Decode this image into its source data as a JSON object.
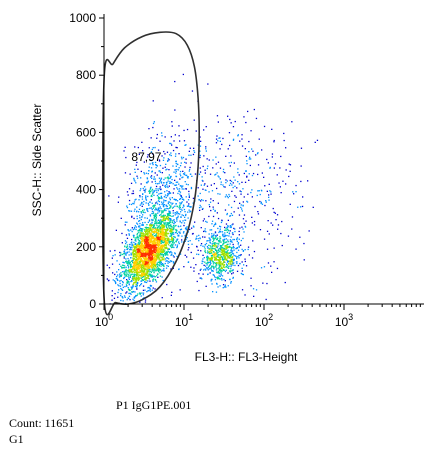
{
  "chart_data": {
    "type": "scatter",
    "title": "",
    "xlabel": "FL3-H:: FL3-Height",
    "ylabel": "SSC-H:: Side Scatter",
    "x_scale": "log",
    "xlim": [
      1,
      10000
    ],
    "x_ticks": [
      {
        "value": 1,
        "base": "10",
        "exp": "0"
      },
      {
        "value": 10,
        "base": "10",
        "exp": "1"
      },
      {
        "value": 100,
        "base": "10",
        "exp": "2"
      },
      {
        "value": 1000,
        "base": "10",
        "exp": "3"
      }
    ],
    "ylim": [
      0,
      1000
    ],
    "y_ticks": [
      0,
      200,
      400,
      600,
      800,
      1000
    ],
    "grid": false,
    "populations": [
      {
        "center_x": 3.5,
        "center_y": 180,
        "spread_logx": 0.17,
        "spread_y": 55,
        "tilt": 220,
        "share": 0.55
      },
      {
        "center_x": 5.0,
        "center_y": 360,
        "spread_logx": 0.22,
        "spread_y": 110,
        "tilt": 120,
        "share": 0.17
      },
      {
        "center_x": 28,
        "center_y": 170,
        "spread_logx": 0.12,
        "spread_y": 45,
        "tilt": 0,
        "share": 0.16
      },
      {
        "center_x": 35,
        "center_y": 380,
        "spread_logx": 0.45,
        "spread_y": 140,
        "tilt": 0,
        "share": 0.12
      }
    ],
    "gate": {
      "name": "G1",
      "percent_label": "87,97",
      "label_at": [
        2.2,
        500
      ],
      "outline": [
        [
          1.0,
          780
        ],
        [
          1.3,
          840
        ],
        [
          1.8,
          895
        ],
        [
          3.0,
          935
        ],
        [
          5.0,
          950
        ],
        [
          8.0,
          945
        ],
        [
          11.0,
          905
        ],
        [
          13.5,
          830
        ],
        [
          15.0,
          720
        ],
        [
          15.5,
          600
        ],
        [
          15.0,
          480
        ],
        [
          13.5,
          360
        ],
        [
          11.0,
          250
        ],
        [
          8.0,
          150
        ],
        [
          5.0,
          60
        ],
        [
          3.0,
          15
        ],
        [
          2.0,
          0
        ],
        [
          1.4,
          5
        ],
        [
          1.0,
          25
        ]
      ]
    },
    "color_scale": [
      "#0000d0",
      "#0090ff",
      "#00d0a0",
      "#a0e000",
      "#ffd000",
      "#ff3000"
    ]
  },
  "footer": {
    "sample_name": "P1 IgG1PE.001",
    "count_text": "Count: 11651",
    "gate_text": "G1"
  }
}
